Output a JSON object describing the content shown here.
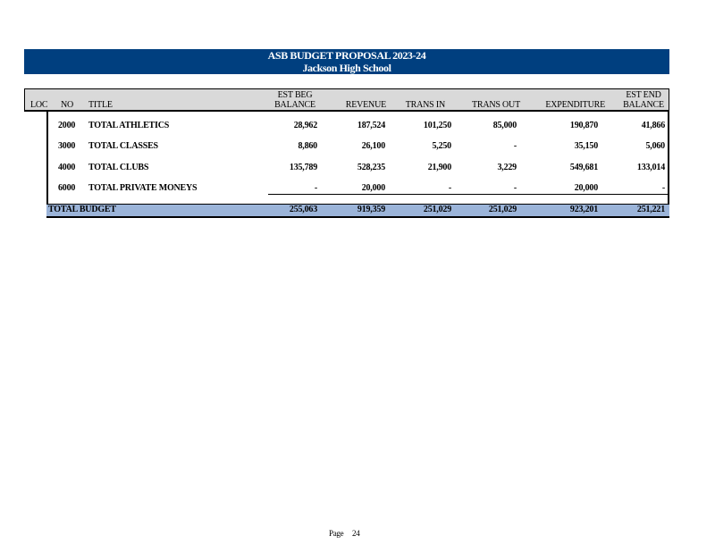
{
  "banner": {
    "title": "ASB BUDGET PROPOSAL 2023-24",
    "school": "Jackson High School"
  },
  "columns": {
    "loc": "LOC",
    "no": "NO",
    "title": "TITLE",
    "est_beg_top": "EST BEG",
    "est_beg_bottom": "BALANCE",
    "revenue": "REVENUE",
    "trans_in": "TRANS IN",
    "trans_out": "TRANS OUT",
    "expenditure": "EXPENDITURE",
    "est_end_top": "EST END",
    "est_end_bottom": "BALANCE"
  },
  "rows": [
    {
      "no": "2000",
      "title": "TOTAL ATHLETICS",
      "beg": "28,962",
      "rev": "187,524",
      "tin": "101,250",
      "tout": "85,000",
      "exp": "190,870",
      "end": "41,866"
    },
    {
      "no": "3000",
      "title": "TOTAL CLASSES",
      "beg": "8,860",
      "rev": "26,100",
      "tin": "5,250",
      "tout": "-",
      "exp": "35,150",
      "end": "5,060"
    },
    {
      "no": "4000",
      "title": "TOTAL CLUBS",
      "beg": "135,789",
      "rev": "528,235",
      "tin": "21,900",
      "tout": "3,229",
      "exp": "549,681",
      "end": "133,014"
    },
    {
      "no": "6000",
      "title": "TOTAL PRIVATE MONEYS",
      "beg": "-",
      "rev": "20,000",
      "tin": "-",
      "tout": "-",
      "exp": "20,000",
      "end": "-"
    }
  ],
  "total": {
    "label": "TOTAL BUDGET",
    "beg": "255,063",
    "rev": "919,359",
    "tin": "251,029",
    "tout": "251,029",
    "exp": "923,201",
    "end": "251,221"
  },
  "footer": {
    "page_label": "Page",
    "page_number": "24"
  }
}
